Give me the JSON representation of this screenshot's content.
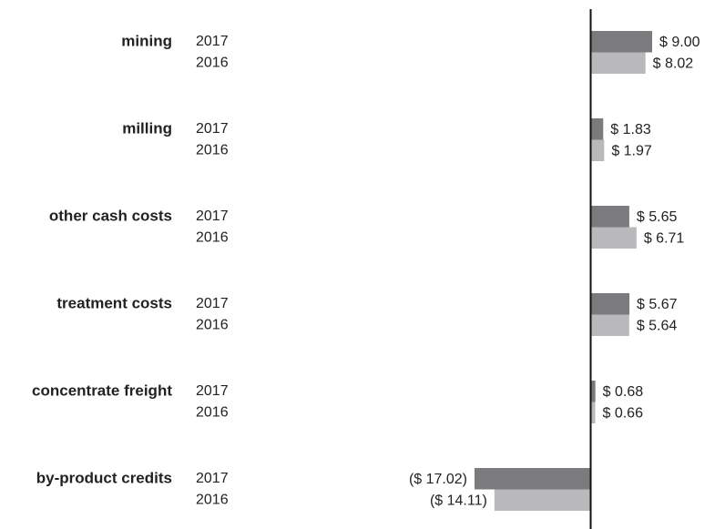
{
  "chart_data": {
    "type": "bar",
    "categories": [
      "mining",
      "milling",
      "other cash costs",
      "treatment costs",
      "concentrate freight",
      "by-product credits"
    ],
    "series": [
      {
        "name": "2017",
        "color": "#7b7b7d",
        "values": [
          9.0,
          1.83,
          5.65,
          5.67,
          0.68,
          -17.02
        ],
        "value_labels": [
          "$ 9.00",
          "$ 1.83",
          "$ 5.65",
          "$ 5.67",
          "$ 0.68",
          "($ 17.02)"
        ]
      },
      {
        "name": "2016",
        "color": "#b9b9bb",
        "values": [
          8.02,
          1.97,
          6.71,
          5.64,
          0.66,
          -14.11
        ],
        "value_labels": [
          "$ 8.02",
          "$ 1.97",
          "$ 6.71",
          "$ 5.64",
          "$ 0.66",
          "($ 14.11)"
        ]
      }
    ]
  }
}
